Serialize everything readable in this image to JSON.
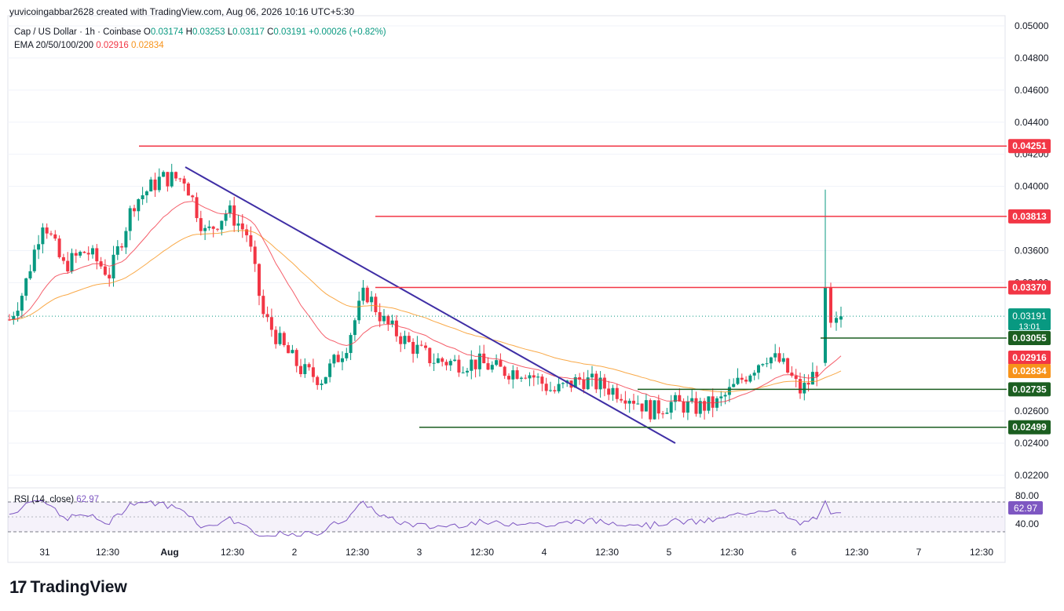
{
  "credit": "yuvicoingabbar2628 created with TradingView.com, Aug 06, 2026 10:16 UTC+5:30",
  "legend": {
    "symbol": "Cap / US Dollar · 1h · Coinbase",
    "o_label": "O",
    "o": "0.03174",
    "h_label": "H",
    "h": "0.03253",
    "l_label": "L",
    "l": "0.03117",
    "c_label": "C",
    "c": "0.03191",
    "change": "+0.00026 (+0.82%)",
    "ema_label": "EMA 20/50/100/200",
    "ema1": "0.02916",
    "ema2": "0.02834"
  },
  "rsi_legend": {
    "label": "RSI (14, close)",
    "value": "62.97"
  },
  "brand": "TradingView",
  "colors": {
    "up": "#089981",
    "down": "#f23645",
    "ema_fast": "#f23645",
    "ema_slow": "#f7931a",
    "trendline": "#3f2ea5",
    "resistance": "#f23645",
    "support": "#1b5e20",
    "rsi": "#7e57c2"
  },
  "chart_data": {
    "type": "candlestick",
    "y_axis_ticks": [
      "0.05000",
      "0.04800",
      "0.04600",
      "0.04400",
      "0.04200",
      "0.04000",
      "0.03600",
      "0.03400",
      "0.02600",
      "0.02400",
      "0.02200"
    ],
    "y_range": [
      0.0215,
      0.0505
    ],
    "x_axis_ticks": [
      "31",
      "12:30",
      "Aug",
      "12:30",
      "2",
      "12:30",
      "3",
      "12:30",
      "4",
      "12:30",
      "5",
      "12:30",
      "6",
      "12:30",
      "7",
      "12:30"
    ],
    "resistance_levels": [
      "0.04251",
      "0.03813",
      "0.03370"
    ],
    "support_levels": [
      "0.03055",
      "0.02735",
      "0.02499"
    ],
    "last_price": "0.03191",
    "countdown": "13:01",
    "ema_values": [
      "0.02916",
      "0.02834"
    ],
    "rsi": {
      "value": "62.97",
      "levels": [
        "80.00",
        "40.00"
      ]
    }
  }
}
